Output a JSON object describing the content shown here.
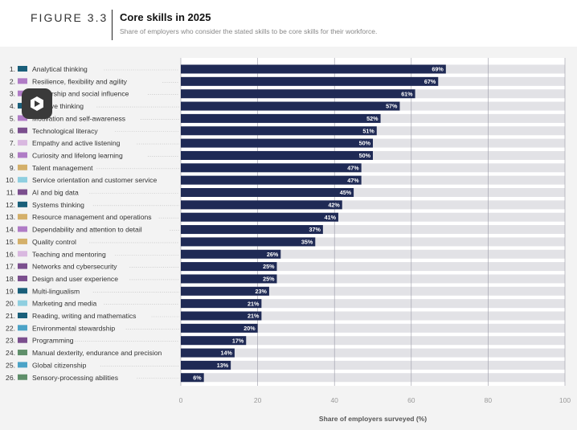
{
  "figure": {
    "label": "FIGURE 3.3",
    "title": "Core skills in 2025",
    "subtitle": "Share of employers who consider the stated skills to be core skills for their workforce."
  },
  "chart_data": {
    "type": "bar",
    "orientation": "horizontal",
    "title": "Core skills in 2025",
    "xlabel": "Share of employers surveyed (%)",
    "ylabel": "",
    "xlim": [
      0,
      100
    ],
    "xticks": [
      0,
      20,
      40,
      60,
      80,
      100
    ],
    "grid": true,
    "bar_color": "#1f2a55",
    "track_color": "#e2e2e6",
    "categories": [
      {
        "rank": "1.",
        "label": "Analytical thinking",
        "value": 69,
        "swatch": "#1a5f7a"
      },
      {
        "rank": "2.",
        "label": "Resilience, flexibility and agility",
        "value": 67,
        "swatch": "#b07cc6"
      },
      {
        "rank": "3.",
        "label": "Leadership and social influence",
        "value": 61,
        "swatch": "#b07cc6"
      },
      {
        "rank": "4.",
        "label": "Creative thinking",
        "value": 57,
        "swatch": "#1a5f7a"
      },
      {
        "rank": "5.",
        "label": "Motivation and self-awareness",
        "value": 52,
        "swatch": "#b07cc6"
      },
      {
        "rank": "6.",
        "label": "Technological literacy",
        "value": 51,
        "swatch": "#7b4f8e"
      },
      {
        "rank": "7.",
        "label": "Empathy and active listening",
        "value": 50,
        "swatch": "#d9b8e0"
      },
      {
        "rank": "8.",
        "label": "Curiosity and lifelong learning",
        "value": 50,
        "swatch": "#b07cc6"
      },
      {
        "rank": "9.",
        "label": "Talent management",
        "value": 47,
        "swatch": "#d4b06a"
      },
      {
        "rank": "10.",
        "label": "Service orientation and customer service",
        "value": 47,
        "swatch": "#8fcfe0"
      },
      {
        "rank": "11.",
        "label": "AI and big data",
        "value": 45,
        "swatch": "#7b4f8e"
      },
      {
        "rank": "12.",
        "label": "Systems thinking",
        "value": 42,
        "swatch": "#1a5f7a"
      },
      {
        "rank": "13.",
        "label": "Resource management and operations",
        "value": 41,
        "swatch": "#d4b06a"
      },
      {
        "rank": "14.",
        "label": "Dependability and attention to detail",
        "value": 37,
        "swatch": "#b07cc6"
      },
      {
        "rank": "15.",
        "label": "Quality control",
        "value": 35,
        "swatch": "#d4b06a"
      },
      {
        "rank": "16.",
        "label": "Teaching and mentoring",
        "value": 26,
        "swatch": "#d9b8e0"
      },
      {
        "rank": "17.",
        "label": "Networks and cybersecurity",
        "value": 25,
        "swatch": "#7b4f8e"
      },
      {
        "rank": "18.",
        "label": "Design and user experience",
        "value": 25,
        "swatch": "#7b4f8e"
      },
      {
        "rank": "19.",
        "label": "Multi-lingualism",
        "value": 23,
        "swatch": "#1a5f7a"
      },
      {
        "rank": "20.",
        "label": "Marketing and media",
        "value": 21,
        "swatch": "#8fcfe0"
      },
      {
        "rank": "21.",
        "label": "Reading, writing and mathematics",
        "value": 21,
        "swatch": "#1a5f7a"
      },
      {
        "rank": "22.",
        "label": "Environmental stewardship",
        "value": 20,
        "swatch": "#4ba3c7"
      },
      {
        "rank": "23.",
        "label": "Programming",
        "value": 17,
        "swatch": "#7b4f8e"
      },
      {
        "rank": "24.",
        "label": "Manual dexterity, endurance and precision",
        "value": 14,
        "swatch": "#5f8f6a"
      },
      {
        "rank": "25.",
        "label": "Global citizenship",
        "value": 13,
        "swatch": "#4ba3c7"
      },
      {
        "rank": "26.",
        "label": "Sensory-processing abilities",
        "value": 6,
        "swatch": "#5f8f6a"
      }
    ]
  }
}
